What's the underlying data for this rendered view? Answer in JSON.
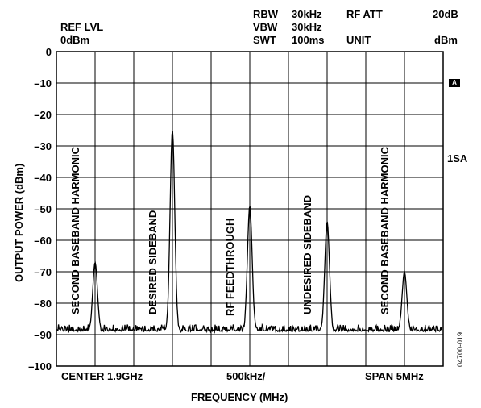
{
  "header": {
    "ref_lvl_label": "REF LVL",
    "ref_lvl_value": "0dBm",
    "rbw_label": "RBW",
    "rbw_value": "30kHz",
    "vbw_label": "VBW",
    "vbw_value": "30kHz",
    "swt_label": "SWT",
    "swt_value": "100ms",
    "rf_att_label": "RF ATT",
    "rf_att_value": "20dB",
    "unit_label": "UNIT",
    "unit_value": "dBm"
  },
  "side": {
    "marker": "A",
    "trace_label": "1SA",
    "figure_id": "04700-019"
  },
  "footer": {
    "center": "CENTER 1.9GHz",
    "div": "500kHz/",
    "span": "SPAN 5MHz"
  },
  "chart_data": {
    "type": "line",
    "title": "",
    "xlabel": "FREQUENCY (MHz)",
    "ylabel": "OUTPUT POWER (dBm)",
    "ylim": [
      -100,
      0
    ],
    "yticks": [
      "0",
      "–10",
      "–20",
      "–30",
      "–40",
      "–50",
      "–60",
      "–70",
      "–80",
      "–90",
      "–100"
    ],
    "xdivisions": 10,
    "grid": true,
    "noise_floor_dbm": -89,
    "peaks": [
      {
        "name": "SECOND BASEBAND HARMONIC",
        "division": 1,
        "level_dbm": -67
      },
      {
        "name": "DESIRED SIDEBAND",
        "division": 3,
        "level_dbm": -25
      },
      {
        "name": "RF FEEDTHROUGH",
        "division": 5,
        "level_dbm": -49
      },
      {
        "name": "UNDESIRED SIDEBAND",
        "division": 7,
        "level_dbm": -54
      },
      {
        "name": "SECOND BASEBAND HARMONIC",
        "division": 9,
        "level_dbm": -70
      }
    ]
  }
}
